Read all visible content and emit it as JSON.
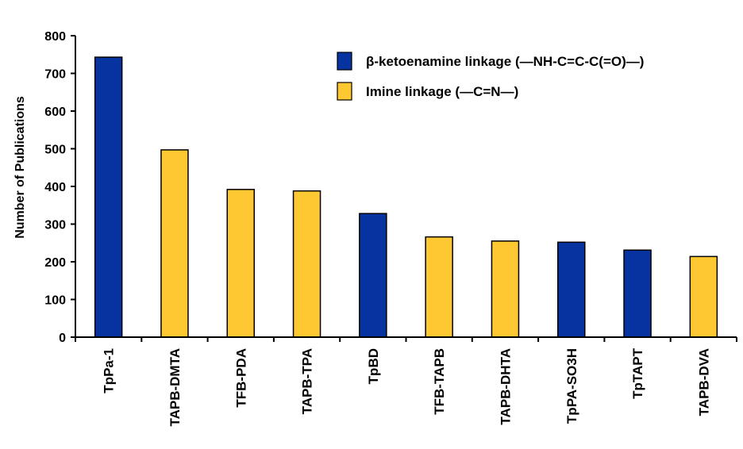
{
  "chart_data": {
    "type": "bar",
    "title": "",
    "xlabel": "",
    "ylabel": "Number of Publications",
    "ylim": [
      0,
      800
    ],
    "yticks": [
      0,
      100,
      200,
      300,
      400,
      500,
      600,
      700,
      800
    ],
    "grid": false,
    "legend_position": "top-right",
    "categories": [
      "TpPa-1",
      "TAPB-DMTA",
      "TFB-PDA",
      "TAPB-TPA",
      "TpBD",
      "TFB-TAPB",
      "TAPB-DHTA",
      "TpPA-SO3H",
      "TpTAPT",
      "TAPB-DVA"
    ],
    "values": [
      743,
      497,
      392,
      388,
      328,
      266,
      255,
      252,
      231,
      214
    ],
    "bar_series": [
      "keto",
      "imine",
      "imine",
      "imine",
      "keto",
      "imine",
      "imine",
      "keto",
      "keto",
      "imine"
    ],
    "series": [
      {
        "key": "keto",
        "name": "β-ketoenamine linkage  (—NH-C=C-C(=O)—)",
        "color": "#0733a0"
      },
      {
        "key": "imine",
        "name": "Imine linkage (—C=N—)",
        "color": "#fec832"
      }
    ]
  }
}
